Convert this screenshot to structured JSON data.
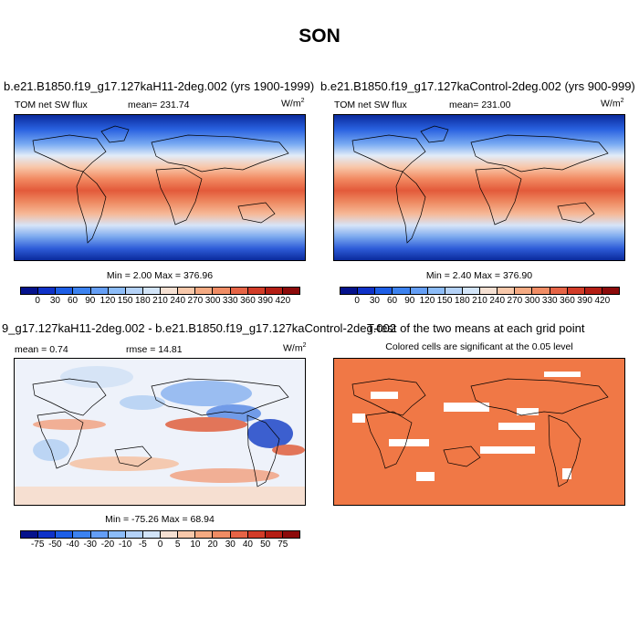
{
  "title": "SON",
  "panels": [
    {
      "case": "b.e21.B1850.f19_g17.127kaH11-2deg.002 (yrs 1900-1999)",
      "left_label": "TOM net SW flux",
      "center_label": "mean= 231.74",
      "units_base": "W/m",
      "units_sup": "2",
      "minmax": "Min =   2.00 Max = 376.96"
    },
    {
      "case": "b.e21.B1850.f19_g17.127kaControl-2deg.002 (yrs 900-999)",
      "left_label": "TOM net SW flux",
      "center_label": "mean= 231.00",
      "units_base": "W/m",
      "units_sup": "2",
      "minmax": "Min =   2.40 Max = 376.90"
    },
    {
      "case": "9_g17.127kaH11-2deg.002 - b.e21.B1850.f19_g17.127kaControl-2deg.002",
      "left_label": "mean =   0.74",
      "center_label": "rmse =  14.81",
      "units_base": "W/m",
      "units_sup": "2",
      "minmax": "Min = -75.26 Max =  68.94"
    },
    {
      "case": "T-test of the two means at each grid point",
      "subtitle": "Colored cells are significant at the 0.05 level"
    }
  ],
  "colorbars": {
    "absolute": {
      "labels": [
        "0",
        "30",
        "60",
        "90",
        "120",
        "150",
        "180",
        "210",
        "240",
        "270",
        "300",
        "330",
        "360",
        "390",
        "420"
      ],
      "colors": [
        "#05128c",
        "#0f32c8",
        "#1d5ee6",
        "#3c82f0",
        "#649ef5",
        "#8cbcf8",
        "#b4d2f8",
        "#d2e4f8",
        "#f5e0d2",
        "#f8c8aa",
        "#f5aa82",
        "#f08c64",
        "#e66446",
        "#d23c28",
        "#b41e14",
        "#8c0a0a"
      ]
    },
    "difference": {
      "labels": [
        "-75",
        "-50",
        "-40",
        "-30",
        "-20",
        "-10",
        "-5",
        "0",
        "5",
        "10",
        "20",
        "30",
        "40",
        "50",
        "75"
      ],
      "colors": [
        "#05128c",
        "#0f32c8",
        "#1d5ee6",
        "#3c82f0",
        "#649ef5",
        "#8cbcf8",
        "#b4d2f8",
        "#d2e4f8",
        "#f5e0d2",
        "#f8c8aa",
        "#f5aa82",
        "#f08c64",
        "#e66446",
        "#d23c28",
        "#b41e14",
        "#8c0a0a"
      ]
    }
  },
  "significance_color": "#f07846"
}
